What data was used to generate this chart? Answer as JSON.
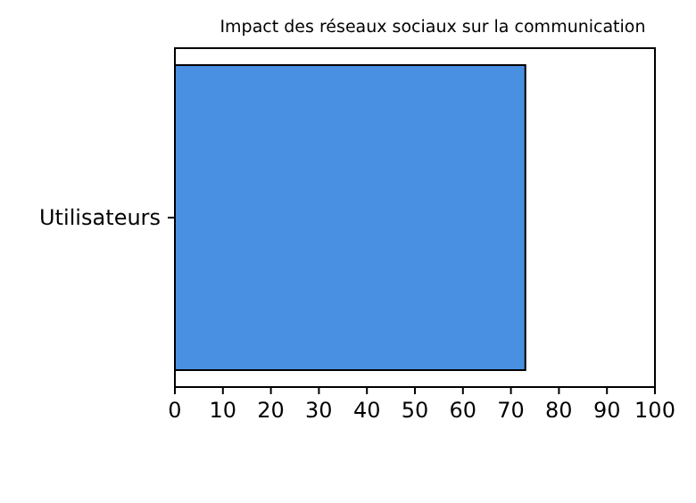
{
  "chart_data": {
    "type": "bar",
    "orientation": "horizontal",
    "title": "Impact des réseaux sociaux sur la communication",
    "categories": [
      "Utilisateurs"
    ],
    "values": [
      73
    ],
    "color": "#4a90e2",
    "xlim": [
      0,
      100
    ],
    "xticks": [
      0,
      10,
      20,
      30,
      40,
      50,
      60,
      70,
      80,
      90,
      100
    ],
    "grid": false
  }
}
